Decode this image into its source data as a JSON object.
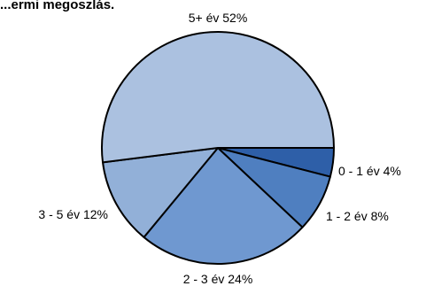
{
  "chart_data": {
    "type": "pie",
    "title": "...ermi megoszlás.",
    "slices": [
      {
        "label": "0 - 1 év 4%",
        "value": 4,
        "color": "#2e5fa8"
      },
      {
        "label": "1 - 2 év 8%",
        "value": 8,
        "color": "#4f7fc0"
      },
      {
        "label": "2 - 3 év 24%",
        "value": 24,
        "color": "#6f98d0"
      },
      {
        "label": "3 - 5 év 12%",
        "value": 12,
        "color": "#92b0d8"
      },
      {
        "label": "5+ év 52%",
        "value": 52,
        "color": "#abc1e0"
      }
    ],
    "legend": "none"
  }
}
